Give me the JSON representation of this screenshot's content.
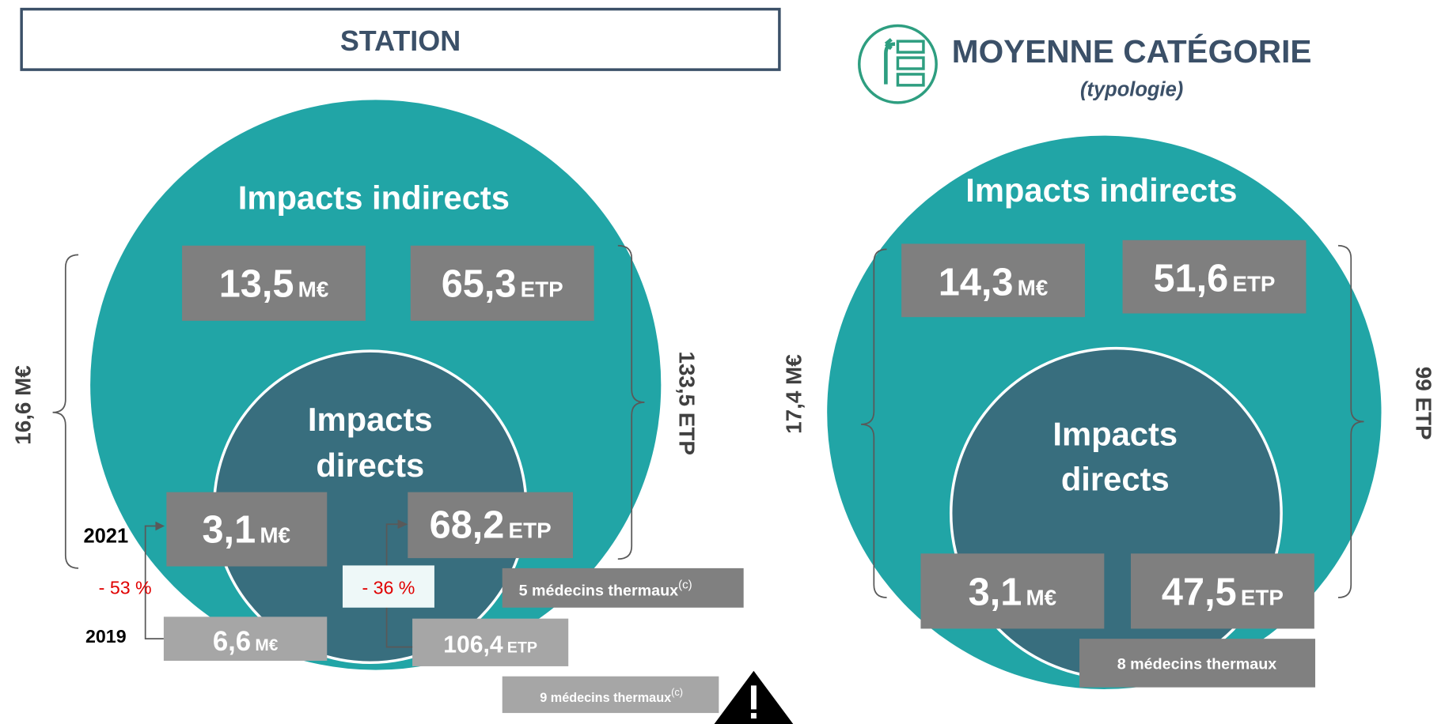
{
  "units": {
    "eur": "M€",
    "etp": "ETP"
  },
  "station": {
    "title": "STATION",
    "indirect_label": "Impacts indirects",
    "indirect_eur": "13,5",
    "indirect_etp": "65,3",
    "direct_label": [
      "Impacts",
      "directs"
    ],
    "total_eur": "16,6 M€",
    "total_etp": "133,5 ETP",
    "year_2021": "2021",
    "year_2019": "2019",
    "direct_eur_2021": "3,1",
    "direct_etp_2021": "68,2",
    "direct_eur_2019": "6,6",
    "direct_etp_2019": "106,4",
    "change_eur": "- 53 %",
    "change_etp": "- 36 %",
    "doctors_2021": "5 médecins thermaux",
    "doctors_2019": "9 médecins thermaux",
    "note": "(c)"
  },
  "category": {
    "title": "MOYENNE CATÉGORIE",
    "subtitle": "(typologie)",
    "indirect_label": "Impacts indirects",
    "indirect_eur": "14,3",
    "indirect_etp": "51,6",
    "direct_label": [
      "Impacts",
      "directs"
    ],
    "direct_eur": "3,1",
    "direct_etp": "47,5",
    "total_eur": "17,4 M€",
    "total_etp": "99 ETP",
    "doctors": "8 médecins thermaux"
  }
}
